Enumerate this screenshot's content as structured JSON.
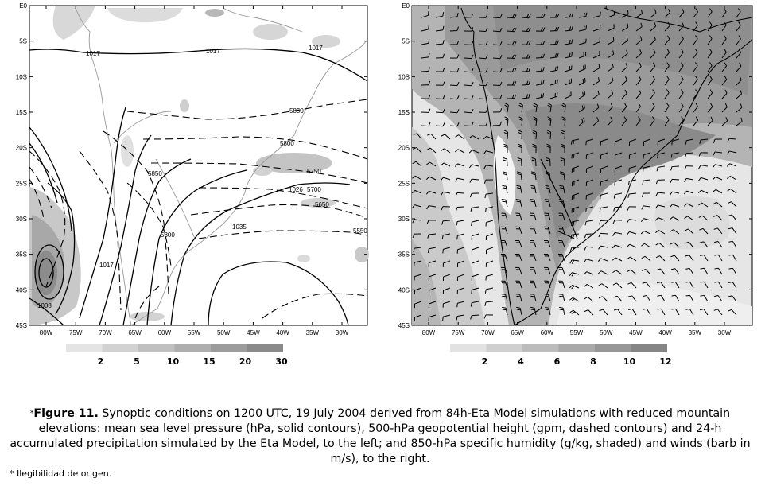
{
  "left_map": {
    "lat_ticks": [
      "E0",
      "5S",
      "10S",
      "15S",
      "20S",
      "25S",
      "30S",
      "35S",
      "40S",
      "45S"
    ],
    "lon_ticks": [
      "80W",
      "75W",
      "70W",
      "65W",
      "60W",
      "55W",
      "50W",
      "45W",
      "40W",
      "35W",
      "30W"
    ],
    "isobar_labels": [
      "1017",
      "1017",
      "1017",
      "1026",
      "1035",
      "1017",
      "1008"
    ],
    "height_labels": [
      "5850",
      "5800",
      "5750",
      "5700",
      "5650",
      "5550",
      "5850",
      "5800"
    ],
    "legend_values": [
      "2",
      "5",
      "10",
      "15",
      "20",
      "30"
    ],
    "legend_colors": [
      "#e4e4e4",
      "#d2d2d2",
      "#c0c0c0",
      "#aeaeae",
      "#9c9c9c",
      "#8a8a8a"
    ]
  },
  "right_map": {
    "lat_ticks": [
      "E0",
      "5S",
      "10S",
      "15S",
      "20S",
      "25S",
      "30S",
      "35S",
      "40S",
      "45S"
    ],
    "lon_ticks": [
      "80W",
      "75W",
      "70W",
      "65W",
      "60W",
      "55W",
      "50W",
      "45W",
      "40W",
      "35W",
      "30W"
    ],
    "legend_values": [
      "2",
      "4",
      "6",
      "8",
      "10",
      "12"
    ],
    "legend_colors": [
      "#e2e2e2",
      "#cfcfcf",
      "#bcbcbc",
      "#a9a9a9",
      "#979797",
      "#858585"
    ]
  },
  "caption": {
    "marker": "*",
    "figure_label": "Figure 11.",
    "text": " Synoptic conditions on 1200 UTC, 19 July 2004 derived from 84h-Eta Model simulations with reduced mountain elevations: mean sea level pressure (hPa, solid contours), 500-hPa geopotential height (gpm, dashed contours) and 24-h accumulated precipitation simulated by the Eta Model, to the left; and 850-hPa specific humidity (g/kg, shaded) and winds (barb in m/s), to the right."
  },
  "footnote": "* Ilegibilidad de origen."
}
